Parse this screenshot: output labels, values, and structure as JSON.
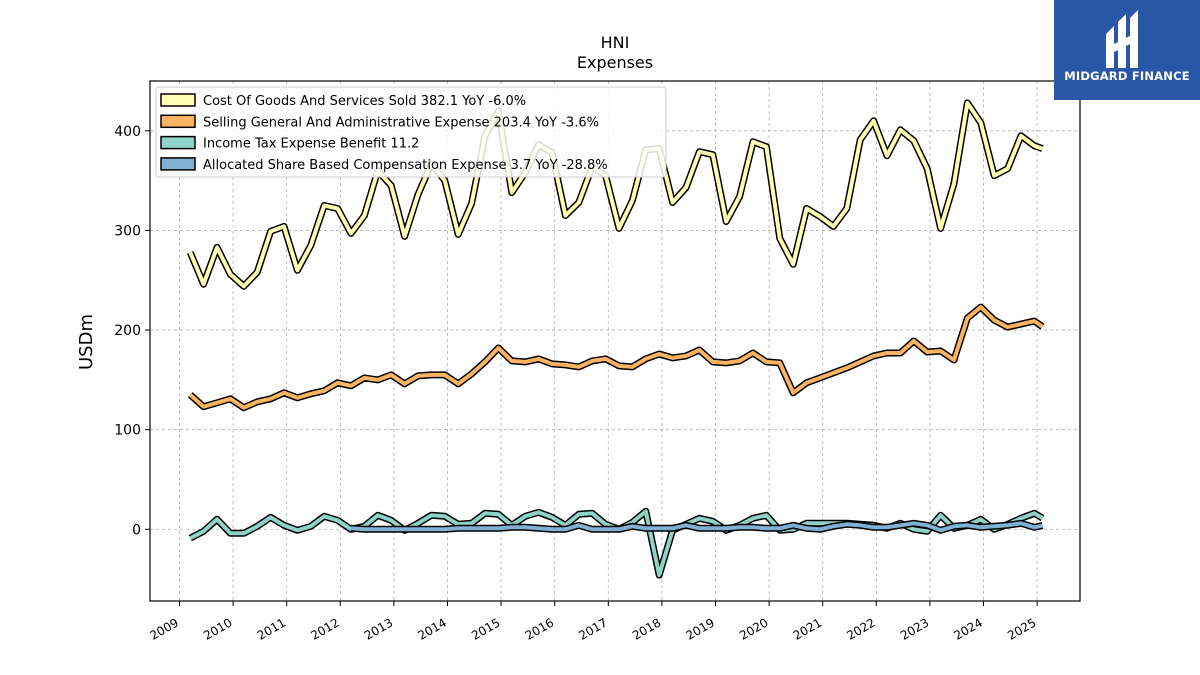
{
  "brand": {
    "name": "MIDGARD FINANCE",
    "color": "#2a56a8",
    "icon": "midgard-logo-icon"
  },
  "chart_data": {
    "type": "line",
    "title": "HNI",
    "subtitle": "Expenses",
    "ylabel": "USDm",
    "xlabel": "",
    "xlim": [
      2008.45,
      2025.8
    ],
    "ylim": [
      -72,
      450
    ],
    "yticks": [
      0,
      100,
      200,
      300,
      400
    ],
    "xticks": [
      "2009",
      "2010",
      "2011",
      "2012",
      "2013",
      "2014",
      "2015",
      "2016",
      "2017",
      "2018",
      "2019",
      "2020",
      "2021",
      "2022",
      "2023",
      "2024",
      "2025"
    ],
    "grid": true,
    "legend_position": "upper-left",
    "series": [
      {
        "name": "Cost Of Goods And Services Sold  382.1 YoY -6.0%",
        "color": "#ffffb3",
        "x": [
          2009.2,
          2009.45,
          2009.7,
          2009.95,
          2010.2,
          2010.45,
          2010.7,
          2010.95,
          2011.2,
          2011.45,
          2011.7,
          2011.95,
          2012.2,
          2012.45,
          2012.7,
          2012.95,
          2013.2,
          2013.45,
          2013.7,
          2013.95,
          2014.2,
          2014.45,
          2014.7,
          2014.95,
          2015.2,
          2015.45,
          2015.7,
          2015.95,
          2016.2,
          2016.45,
          2016.7,
          2016.95,
          2017.2,
          2017.45,
          2017.7,
          2017.95,
          2018.2,
          2018.45,
          2018.7,
          2018.95,
          2019.2,
          2019.45,
          2019.7,
          2019.95,
          2020.2,
          2020.45,
          2020.7,
          2020.95,
          2021.2,
          2021.45,
          2021.7,
          2021.95,
          2022.2,
          2022.45,
          2022.7,
          2022.95,
          2023.2,
          2023.45,
          2023.7,
          2023.95,
          2024.2,
          2024.45,
          2024.7,
          2024.95,
          2025.1
        ],
        "values": [
          278,
          246,
          283,
          256,
          244,
          258,
          299,
          304,
          260,
          285,
          325,
          322,
          297,
          315,
          360,
          345,
          294,
          336,
          367,
          350,
          296,
          327,
          395,
          420,
          338,
          358,
          386,
          378,
          315,
          328,
          364,
          355,
          302,
          330,
          381,
          382,
          328,
          343,
          379,
          376,
          309,
          334,
          389,
          384,
          292,
          266,
          322,
          314,
          304,
          322,
          391,
          410,
          375,
          401,
          390,
          362,
          302,
          347,
          428,
          408,
          355,
          362,
          395,
          385,
          382.1
        ]
      },
      {
        "name": "Selling General And Administrative Expense  203.4 YoY -3.6%",
        "color": "#fdb462",
        "x": [
          2009.2,
          2009.45,
          2009.7,
          2009.95,
          2010.2,
          2010.45,
          2010.7,
          2010.95,
          2011.2,
          2011.45,
          2011.7,
          2011.95,
          2012.2,
          2012.45,
          2012.7,
          2012.95,
          2013.2,
          2013.45,
          2013.7,
          2013.95,
          2014.2,
          2014.45,
          2014.7,
          2014.95,
          2015.2,
          2015.45,
          2015.7,
          2015.95,
          2016.2,
          2016.45,
          2016.7,
          2016.95,
          2017.2,
          2017.45,
          2017.7,
          2017.95,
          2018.2,
          2018.45,
          2018.7,
          2018.95,
          2019.2,
          2019.45,
          2019.7,
          2019.95,
          2020.2,
          2020.45,
          2020.7,
          2020.95,
          2021.2,
          2021.45,
          2021.7,
          2021.95,
          2022.2,
          2022.45,
          2022.7,
          2022.95,
          2023.2,
          2023.45,
          2023.7,
          2023.95,
          2024.2,
          2024.45,
          2024.7,
          2024.95,
          2025.1
        ],
        "values": [
          135,
          123,
          127,
          131,
          122,
          128,
          131,
          137,
          132,
          136,
          139,
          147,
          144,
          152,
          150,
          155,
          146,
          154,
          155,
          155,
          146,
          156,
          168,
          182,
          169,
          168,
          171,
          166,
          165,
          163,
          169,
          171,
          164,
          163,
          171,
          176,
          172,
          174,
          180,
          168,
          167,
          169,
          177,
          168,
          167,
          137,
          147,
          152,
          157,
          162,
          168,
          174,
          177,
          177,
          189,
          178,
          179,
          170,
          212,
          223,
          210,
          203,
          206,
          209,
          203.4
        ]
      },
      {
        "name": "Income Tax Expense Benefit  11.2",
        "color": "#8dd3c7",
        "x": [
          2009.2,
          2009.45,
          2009.7,
          2009.95,
          2010.2,
          2010.45,
          2010.7,
          2010.95,
          2011.2,
          2011.45,
          2011.7,
          2011.95,
          2012.2,
          2012.45,
          2012.7,
          2012.95,
          2013.2,
          2013.45,
          2013.7,
          2013.95,
          2014.2,
          2014.45,
          2014.7,
          2014.95,
          2015.2,
          2015.45,
          2015.7,
          2015.95,
          2016.2,
          2016.45,
          2016.7,
          2016.95,
          2017.2,
          2017.45,
          2017.7,
          2017.95,
          2018.2,
          2018.45,
          2018.7,
          2018.95,
          2019.2,
          2019.45,
          2019.7,
          2019.95,
          2020.2,
          2020.45,
          2020.7,
          2020.95,
          2021.2,
          2021.45,
          2021.7,
          2021.95,
          2022.2,
          2022.45,
          2022.7,
          2022.95,
          2023.2,
          2023.45,
          2023.7,
          2023.95,
          2024.2,
          2024.45,
          2024.7,
          2024.95,
          2025.1
        ],
        "values": [
          -9,
          -2,
          10,
          -4,
          -4,
          3,
          12,
          4,
          -1,
          3,
          13,
          9,
          0,
          3,
          14,
          9,
          -1,
          6,
          14,
          13,
          5,
          6,
          16,
          15,
          4,
          13,
          17,
          12,
          4,
          15,
          16,
          5,
          0,
          7,
          18,
          -46,
          -1,
          5,
          11,
          8,
          -1,
          4,
          11,
          14,
          -1,
          0,
          6,
          6,
          6,
          6,
          5,
          4,
          1,
          6,
          0,
          -2,
          14,
          1,
          4,
          10,
          0,
          5,
          11,
          16,
          11.2
        ]
      },
      {
        "name": "Allocated Share Based Compensation Expense  3.7 YoY -28.8%",
        "color": "#80b1d3",
        "x": [
          2012.2,
          2012.45,
          2012.7,
          2012.95,
          2013.2,
          2013.45,
          2013.7,
          2013.95,
          2014.2,
          2014.45,
          2014.7,
          2014.95,
          2015.2,
          2015.45,
          2015.7,
          2015.95,
          2016.2,
          2016.45,
          2016.7,
          2016.95,
          2017.2,
          2017.45,
          2017.7,
          2017.95,
          2018.2,
          2018.45,
          2018.7,
          2018.95,
          2019.2,
          2019.45,
          2019.7,
          2019.95,
          2020.2,
          2020.45,
          2020.7,
          2020.95,
          2021.2,
          2021.45,
          2021.7,
          2021.95,
          2022.2,
          2022.45,
          2022.7,
          2022.95,
          2023.2,
          2023.45,
          2023.7,
          2023.95,
          2024.2,
          2024.45,
          2024.7,
          2024.95,
          2025.1
        ],
        "values": [
          1,
          0,
          0,
          0,
          0,
          0,
          0,
          0,
          1,
          1,
          1,
          1,
          2,
          2,
          1,
          0,
          0,
          4,
          0,
          0,
          0,
          3,
          1,
          1,
          1,
          4,
          1,
          1,
          1,
          2,
          2,
          1,
          1,
          4,
          1,
          0,
          3,
          5,
          4,
          2,
          2,
          4,
          6,
          4,
          -1,
          3,
          4,
          2,
          3,
          4,
          6,
          2,
          3.7
        ]
      }
    ]
  }
}
